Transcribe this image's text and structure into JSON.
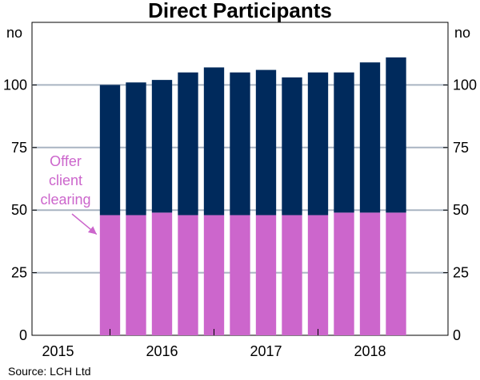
{
  "colors": {
    "bar_total": "#002a5c",
    "bar_client": "#cc66cc",
    "annotation": "#cc66cc",
    "grid": "#a9b4c2"
  },
  "chart_data": {
    "type": "bar",
    "stacked": true,
    "title": "Direct Participants",
    "ylabel_left": "no",
    "ylabel_right": "no",
    "ylim": [
      0,
      125
    ],
    "yticks": [
      0,
      25,
      50,
      75,
      100
    ],
    "grid": true,
    "x_range": [
      2014.75,
      2018.75
    ],
    "x_tick_labels": [
      "2015",
      "2016",
      "2017",
      "2018"
    ],
    "x_tick_label_positions": [
      2015.0,
      2016.0,
      2017.0,
      2018.0
    ],
    "x_boundaries": [
      2015.5,
      2016.5,
      2017.5
    ],
    "x": [
      2015.5,
      2015.75,
      2016.0,
      2016.25,
      2016.5,
      2016.75,
      2017.0,
      2017.25,
      2017.5,
      2017.75,
      2018.0,
      2018.25
    ],
    "series": [
      {
        "values": [
          48,
          48,
          49,
          48,
          48,
          48,
          48,
          48,
          48,
          49,
          49,
          49
        ]
      },
      {
        "values": [
          52,
          53,
          53,
          57,
          59,
          57,
          58,
          55,
          57,
          56,
          60,
          62
        ]
      }
    ],
    "totals": [
      100,
      101,
      102,
      105,
      107,
      105,
      106,
      103,
      105,
      105,
      109,
      111
    ],
    "annotation": "Offer\nclient\nclearing",
    "source": "Source:   LCH Ltd"
  }
}
